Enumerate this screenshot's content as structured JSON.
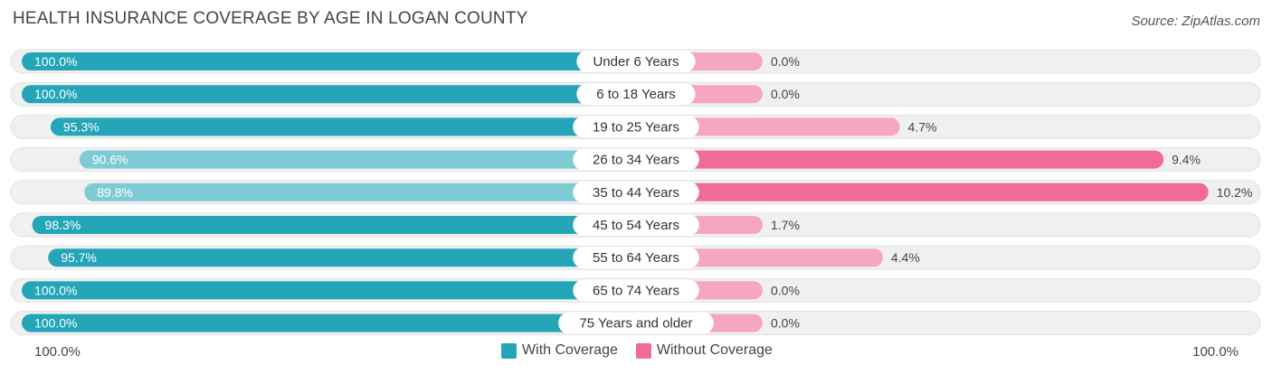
{
  "title": "HEALTH INSURANCE COVERAGE BY AGE IN LOGAN COUNTY",
  "source": "Source: ZipAtlas.com",
  "colors": {
    "with_strong": "#24a6b8",
    "with_light": "#7ecbd6",
    "without_strong": "#f06b96",
    "without_light": "#f6a7c0",
    "track": "#f0f0f0"
  },
  "legend": {
    "with_label": "With Coverage",
    "without_label": "Without Coverage"
  },
  "axis": {
    "left_label": "100.0%",
    "right_label": "100.0%"
  },
  "chart_data": {
    "type": "bar",
    "orientation": "horizontal-diverging",
    "title": "HEALTH INSURANCE COVERAGE BY AGE IN LOGAN COUNTY",
    "categories": [
      "Under 6 Years",
      "6 to 18 Years",
      "19 to 25 Years",
      "26 to 34 Years",
      "35 to 44 Years",
      "45 to 54 Years",
      "55 to 64 Years",
      "65 to 74 Years",
      "75 Years and older"
    ],
    "series": [
      {
        "name": "With Coverage",
        "values": [
          100.0,
          100.0,
          95.3,
          90.6,
          89.8,
          98.3,
          95.7,
          100.0,
          100.0
        ],
        "labels": [
          "100.0%",
          "100.0%",
          "95.3%",
          "90.6%",
          "89.8%",
          "98.3%",
          "95.7%",
          "100.0%",
          "100.0%"
        ]
      },
      {
        "name": "Without Coverage",
        "values": [
          0.0,
          0.0,
          4.7,
          9.4,
          10.2,
          1.7,
          4.4,
          0.0,
          0.0
        ],
        "labels": [
          "0.0%",
          "0.0%",
          "4.7%",
          "9.4%",
          "10.2%",
          "1.7%",
          "4.4%",
          "0.0%",
          "0.0%"
        ]
      }
    ],
    "xlim": [
      -100,
      100
    ],
    "legend_position": "bottom-center"
  }
}
